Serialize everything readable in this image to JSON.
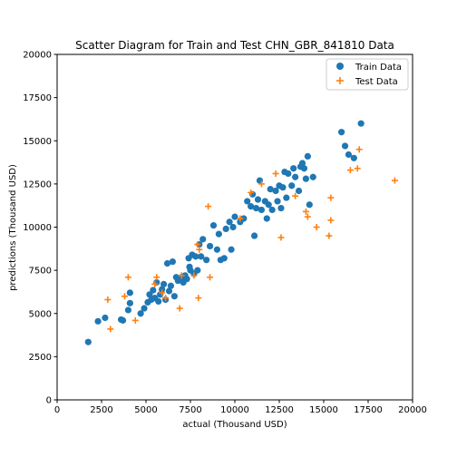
{
  "chart_data": {
    "type": "scatter",
    "title": "Scatter Diagram for Train and Test CHN_GBR_841810 Data",
    "xlabel": "actual (Thousand USD)",
    "ylabel": "predictions (Thousand USD)",
    "xlim": [
      0,
      20000
    ],
    "ylim": [
      0,
      20000
    ],
    "xticks": [
      0,
      2500,
      5000,
      7500,
      10000,
      12500,
      15000,
      17500,
      20000
    ],
    "yticks": [
      0,
      2500,
      5000,
      7500,
      10000,
      12500,
      15000,
      17500,
      20000
    ],
    "grid": false,
    "legend_position": "top-right",
    "series": [
      {
        "name": "Train Data",
        "marker": "circle",
        "color": "#1f77b4",
        "points": [
          [
            1750,
            3350
          ],
          [
            2300,
            4550
          ],
          [
            2700,
            4750
          ],
          [
            3600,
            4650
          ],
          [
            3700,
            4600
          ],
          [
            4000,
            5200
          ],
          [
            4100,
            5600
          ],
          [
            4100,
            6200
          ],
          [
            4700,
            5000
          ],
          [
            4900,
            5300
          ],
          [
            5100,
            5650
          ],
          [
            5200,
            6100
          ],
          [
            5300,
            5800
          ],
          [
            5400,
            6350
          ],
          [
            5500,
            5900
          ],
          [
            5600,
            6800
          ],
          [
            5700,
            5700
          ],
          [
            5800,
            6100
          ],
          [
            5900,
            6400
          ],
          [
            6000,
            6700
          ],
          [
            6100,
            5800
          ],
          [
            6200,
            7900
          ],
          [
            6300,
            6300
          ],
          [
            6400,
            6600
          ],
          [
            6500,
            8000
          ],
          [
            6600,
            6000
          ],
          [
            6700,
            7100
          ],
          [
            6800,
            6900
          ],
          [
            6900,
            7000
          ],
          [
            7000,
            7100
          ],
          [
            7100,
            6800
          ],
          [
            7200,
            7200
          ],
          [
            7300,
            7000
          ],
          [
            7400,
            8200
          ],
          [
            7450,
            7700
          ],
          [
            7500,
            7500
          ],
          [
            7600,
            8400
          ],
          [
            7700,
            7300
          ],
          [
            7800,
            8300
          ],
          [
            7900,
            7500
          ],
          [
            8000,
            9000
          ],
          [
            8100,
            8300
          ],
          [
            8200,
            9300
          ],
          [
            8400,
            8100
          ],
          [
            8600,
            8900
          ],
          [
            8800,
            10100
          ],
          [
            9000,
            8700
          ],
          [
            9100,
            9600
          ],
          [
            9200,
            8100
          ],
          [
            9400,
            8200
          ],
          [
            9500,
            9900
          ],
          [
            9700,
            10300
          ],
          [
            9800,
            8700
          ],
          [
            9900,
            10000
          ],
          [
            10000,
            10600
          ],
          [
            10300,
            10300
          ],
          [
            10500,
            10500
          ],
          [
            10700,
            11500
          ],
          [
            10900,
            11200
          ],
          [
            11000,
            11900
          ],
          [
            11100,
            9500
          ],
          [
            11200,
            11100
          ],
          [
            11300,
            11600
          ],
          [
            11400,
            12700
          ],
          [
            11500,
            11000
          ],
          [
            11700,
            11500
          ],
          [
            11800,
            10500
          ],
          [
            11900,
            11300
          ],
          [
            12000,
            12200
          ],
          [
            12100,
            11000
          ],
          [
            12300,
            12100
          ],
          [
            12400,
            11500
          ],
          [
            12500,
            12400
          ],
          [
            12600,
            11100
          ],
          [
            12700,
            12300
          ],
          [
            12800,
            13200
          ],
          [
            12900,
            11700
          ],
          [
            13000,
            13100
          ],
          [
            13200,
            12400
          ],
          [
            13300,
            13400
          ],
          [
            13400,
            12900
          ],
          [
            13600,
            12100
          ],
          [
            13700,
            13500
          ],
          [
            13800,
            13700
          ],
          [
            13900,
            13400
          ],
          [
            14000,
            12800
          ],
          [
            14100,
            14100
          ],
          [
            14200,
            11300
          ],
          [
            14400,
            12900
          ],
          [
            16000,
            15500
          ],
          [
            16200,
            14700
          ],
          [
            16400,
            14200
          ],
          [
            16700,
            14000
          ],
          [
            17100,
            16000
          ]
        ]
      },
      {
        "name": "Test Data",
        "marker": "plus",
        "color": "#ff7f0e",
        "points": [
          [
            2850,
            5800
          ],
          [
            3000,
            4100
          ],
          [
            3800,
            6000
          ],
          [
            4000,
            7100
          ],
          [
            4400,
            4600
          ],
          [
            5500,
            6700
          ],
          [
            5600,
            7100
          ],
          [
            5900,
            6200
          ],
          [
            6100,
            5900
          ],
          [
            6900,
            5300
          ],
          [
            7000,
            7200
          ],
          [
            7700,
            7200
          ],
          [
            7900,
            9000
          ],
          [
            7950,
            5900
          ],
          [
            8000,
            8700
          ],
          [
            8500,
            11200
          ],
          [
            8600,
            7100
          ],
          [
            10300,
            10500
          ],
          [
            10900,
            12000
          ],
          [
            11500,
            12500
          ],
          [
            12300,
            13100
          ],
          [
            12600,
            9400
          ],
          [
            13400,
            11800
          ],
          [
            14000,
            10900
          ],
          [
            14100,
            10600
          ],
          [
            14600,
            10000
          ],
          [
            15300,
            9500
          ],
          [
            15400,
            11700
          ],
          [
            15400,
            10400
          ],
          [
            16500,
            13300
          ],
          [
            16900,
            13400
          ],
          [
            17000,
            14500
          ],
          [
            19000,
            12700
          ]
        ]
      }
    ]
  }
}
